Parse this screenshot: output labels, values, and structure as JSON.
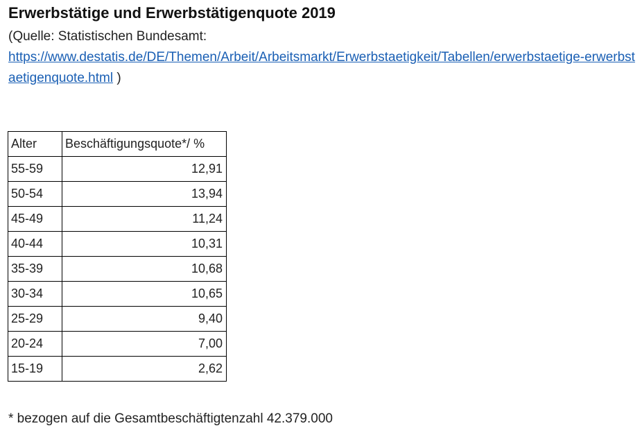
{
  "title": "Erwerbstätige und Erwerbstätigenquote 2019",
  "source": {
    "prefix": "(Quelle: Statistischen Bundesamt:",
    "link_text": "https://www.destatis.de/DE/Themen/Arbeit/Arbeitsmarkt/Erwerbstaetigkeit/Tabellen/erwerbstaetige-erwerbstaetigenquote.html",
    "suffix": ")"
  },
  "table": {
    "headers": [
      "Alter",
      "Beschäftigungsquote*/ %"
    ],
    "rows": [
      [
        "55-59",
        "12,91"
      ],
      [
        "50-54",
        "13,94"
      ],
      [
        "45-49",
        "11,24"
      ],
      [
        "40-44",
        "10,31"
      ],
      [
        "35-39",
        "10,68"
      ],
      [
        "30-34",
        "10,65"
      ],
      [
        "25-29",
        "9,40"
      ],
      [
        "20-24",
        "7,00"
      ],
      [
        "15-19",
        "2,62"
      ]
    ]
  },
  "footnote": "* bezogen auf die Gesamtbeschäftigtenzahl 42.379.000"
}
